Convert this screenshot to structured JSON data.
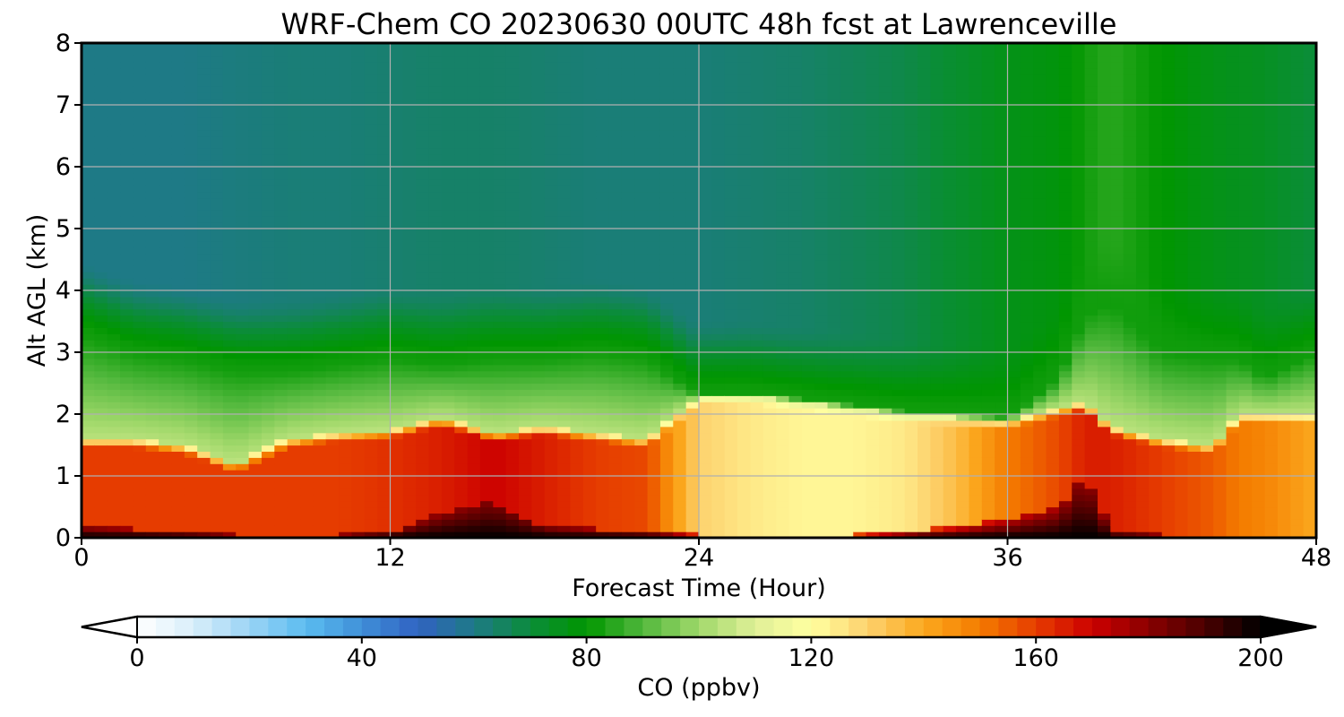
{
  "chart_data": {
    "type": "heatmap",
    "title": "WRF-Chem CO  20230630 00UTC 48h fcst at Lawrenceville",
    "xlabel": "Forecast Time (Hour)",
    "ylabel": "Alt AGL (km)",
    "xlim": [
      0,
      48
    ],
    "ylim": [
      0,
      8
    ],
    "xticks": [
      "0",
      "12",
      "24",
      "36",
      "48"
    ],
    "yticks": [
      "0",
      "1",
      "2",
      "3",
      "4",
      "5",
      "6",
      "7",
      "8"
    ],
    "grid": true,
    "colorbar": {
      "label": "CO  (ppbv)",
      "min": 0,
      "max": 200,
      "ticks": [
        "0",
        "40",
        "80",
        "120",
        "160",
        "200"
      ],
      "extend": "both",
      "colors": [
        "#ffffff",
        "#d8eefa",
        "#9bd4f5",
        "#5bbcf0",
        "#3f8fd8",
        "#3162c2",
        "#1e7a86",
        "#0b8c3a",
        "#009600",
        "#52b83d",
        "#a0d86a",
        "#e0f098",
        "#ffffa0",
        "#fdd26e",
        "#fba81e",
        "#f47c00",
        "#e63c00",
        "#cc0000",
        "#8a0000",
        "#4a0000",
        "#000000"
      ]
    },
    "profile_x": [
      0,
      2,
      4,
      6,
      8,
      10,
      12,
      14,
      16,
      18,
      20,
      22,
      24,
      26,
      28,
      30,
      32,
      34,
      36,
      38,
      39,
      40,
      42,
      44,
      45,
      46,
      48
    ],
    "boundary_layer_top_km": [
      1.6,
      1.6,
      1.5,
      1.2,
      1.6,
      1.7,
      1.75,
      1.95,
      1.7,
      1.8,
      1.7,
      1.6,
      2.3,
      2.3,
      2.2,
      2.1,
      2.0,
      1.95,
      1.9,
      2.1,
      2.2,
      1.8,
      1.6,
      1.5,
      2.0,
      2.0,
      2.0
    ],
    "pollution_layer_top_km": [
      3.3,
      3.0,
      2.9,
      2.7,
      2.7,
      2.8,
      2.9,
      2.8,
      2.9,
      2.9,
      3.0,
      2.9,
      2.3,
      2.2,
      2.2,
      2.1,
      2.0,
      1.95,
      1.9,
      2.6,
      3.6,
      3.8,
      3.0,
      2.9,
      2.9,
      2.6,
      3.0
    ],
    "surface_max_layer_top_km": [
      0.2,
      0.15,
      0.1,
      0.05,
      0.05,
      0.05,
      0.1,
      0.4,
      0.6,
      0.2,
      0.15,
      0.1,
      0.05,
      0.05,
      0.05,
      0.05,
      0.1,
      0.2,
      0.3,
      0.5,
      1.1,
      0.1,
      0.05,
      0.05,
      0.05,
      0.05,
      0.05
    ],
    "boundary_layer_co_ppbv": [
      160,
      160,
      160,
      160,
      160,
      160,
      162,
      165,
      170,
      165,
      160,
      158,
      130,
      125,
      122,
      122,
      125,
      135,
      150,
      158,
      165,
      165,
      160,
      155,
      150,
      148,
      140
    ],
    "upper_co_by_time_ppbv": [
      60,
      60,
      60,
      61,
      62,
      62,
      63,
      64,
      64,
      63,
      62,
      62,
      62,
      63,
      64,
      66,
      68,
      72,
      76,
      78,
      82,
      85,
      80,
      76,
      75,
      74,
      70
    ]
  }
}
